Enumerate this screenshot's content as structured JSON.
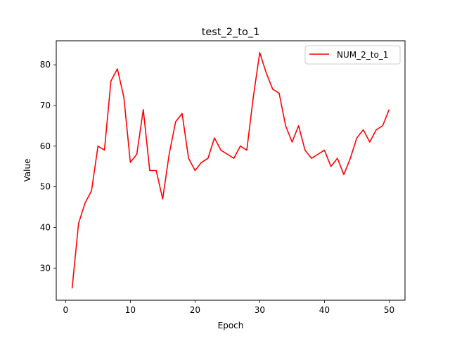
{
  "chart_data": {
    "type": "line",
    "title": "test_2_to_1",
    "xlabel": "Epoch",
    "ylabel": "Value",
    "xlim": [
      -1.45,
      52.45
    ],
    "ylim": [
      22.1,
      85.9
    ],
    "xticks": [
      0,
      10,
      20,
      30,
      40,
      50
    ],
    "yticks": [
      30,
      40,
      50,
      60,
      70,
      80
    ],
    "grid": false,
    "legend_position": "top-right",
    "series": [
      {
        "name": "NUM_2_to_1",
        "color": "#ff0000",
        "x": [
          1,
          2,
          3,
          4,
          5,
          6,
          7,
          8,
          9,
          10,
          11,
          12,
          13,
          14,
          15,
          16,
          17,
          18,
          19,
          20,
          21,
          22,
          23,
          24,
          25,
          26,
          27,
          28,
          29,
          30,
          31,
          32,
          33,
          34,
          35,
          36,
          37,
          38,
          39,
          40,
          41,
          42,
          43,
          44,
          45,
          46,
          47,
          48,
          49,
          50
        ],
        "values": [
          25,
          41,
          46,
          49,
          60,
          59,
          76,
          79,
          72,
          56,
          58,
          69,
          54,
          54,
          47,
          58,
          66,
          68,
          57,
          54,
          56,
          57,
          62,
          59,
          58,
          57,
          60,
          59,
          72,
          83,
          78,
          74,
          73,
          65,
          61,
          65,
          59,
          57,
          58,
          59,
          55,
          57,
          53,
          57,
          62,
          64,
          61,
          64,
          65,
          69
        ]
      }
    ]
  }
}
